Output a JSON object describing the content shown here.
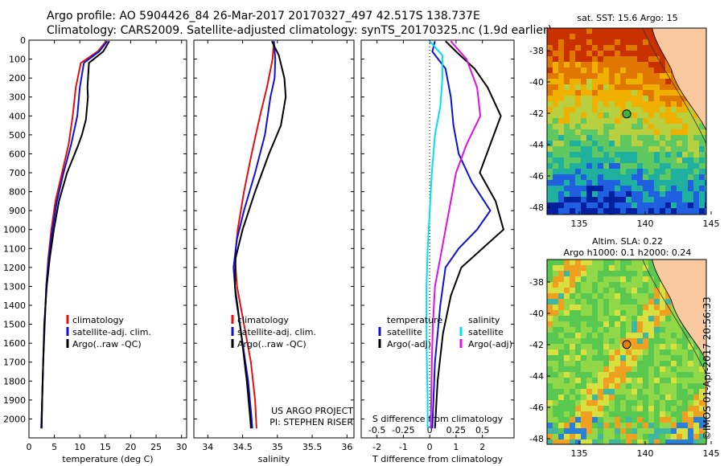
{
  "header": {
    "line1": "Argo profile: AO 5904426_84 26-Mar-2017 20170327_497 42.517S 138.737E",
    "line2": "Climatology: CARS2009. Satellite-adjusted climatology: synTS_20170325.nc (1.9d earlier)"
  },
  "colors": {
    "climatology": "#e01010",
    "satellite": "#1010d0",
    "argo": "#000000",
    "sat_sal": "#00e0f0",
    "argo_sal": "#e010e0"
  },
  "chart_data": [
    {
      "type": "line",
      "panel": "temperature",
      "xlabel": "temperature (deg C)",
      "ylabel": "",
      "xlim": [
        0,
        31
      ],
      "ylim": [
        2100,
        0
      ],
      "xticks": [
        0,
        5,
        10,
        15,
        20,
        25,
        30
      ],
      "yticks": [
        0,
        100,
        200,
        300,
        400,
        500,
        600,
        700,
        800,
        900,
        1000,
        1100,
        1200,
        1300,
        1400,
        1500,
        1600,
        1700,
        1800,
        1900,
        2000
      ],
      "legend": [
        "climatology",
        "satellite-adj. clim.",
        "Argo(..raw -QC)"
      ],
      "series": [
        {
          "name": "climatology",
          "color": "#e01010",
          "points": [
            [
              15.2,
              5
            ],
            [
              13.5,
              60
            ],
            [
              10.2,
              120
            ],
            [
              9.2,
              250
            ],
            [
              8.6,
              400
            ],
            [
              7.8,
              550
            ],
            [
              6.5,
              700
            ],
            [
              5.2,
              850
            ],
            [
              4.4,
              1000
            ],
            [
              3.8,
              1150
            ],
            [
              3.4,
              1300
            ],
            [
              3.1,
              1500
            ],
            [
              2.8,
              1700
            ],
            [
              2.6,
              1900
            ],
            [
              2.5,
              2030
            ]
          ]
        },
        {
          "name": "satellite-adj. clim.",
          "color": "#1010d0",
          "points": [
            [
              15.4,
              5
            ],
            [
              13.8,
              60
            ],
            [
              10.8,
              120
            ],
            [
              10.0,
              250
            ],
            [
              9.5,
              400
            ],
            [
              8.3,
              550
            ],
            [
              6.8,
              700
            ],
            [
              5.5,
              850
            ],
            [
              4.6,
              1000
            ],
            [
              3.9,
              1150
            ],
            [
              3.4,
              1300
            ],
            [
              3.1,
              1500
            ],
            [
              2.8,
              1700
            ],
            [
              2.6,
              1900
            ],
            [
              2.4,
              2050
            ]
          ]
        },
        {
          "name": "Argo(..raw -QC)",
          "color": "#000000",
          "points": [
            [
              15.8,
              5
            ],
            [
              14.6,
              60
            ],
            [
              11.8,
              120
            ],
            [
              11.5,
              250
            ],
            [
              11.6,
              300
            ],
            [
              11.2,
              420
            ],
            [
              10.4,
              500
            ],
            [
              9.6,
              560
            ],
            [
              7.5,
              700
            ],
            [
              5.9,
              850
            ],
            [
              4.9,
              1000
            ],
            [
              4.1,
              1150
            ],
            [
              3.5,
              1300
            ],
            [
              3.0,
              1500
            ],
            [
              2.8,
              1700
            ],
            [
              2.6,
              1900
            ],
            [
              2.5,
              2050
            ]
          ]
        }
      ]
    },
    {
      "type": "line",
      "panel": "salinity",
      "xlabel": "salinity",
      "xlim": [
        33.8,
        36.1
      ],
      "ylim": [
        2100,
        0
      ],
      "xticks": [
        34,
        34.5,
        35,
        35.5,
        36
      ],
      "legend": [
        "climatology",
        "satellite-adj. clim.",
        "Argo(..raw -QC)"
      ],
      "credit1": "US ARGO PROJECT",
      "credit2": "PI: STEPHEN RISER",
      "series": [
        {
          "name": "climatology",
          "color": "#e01010",
          "points": [
            [
              34.95,
              5
            ],
            [
              34.93,
              100
            ],
            [
              34.85,
              250
            ],
            [
              34.75,
              400
            ],
            [
              34.63,
              600
            ],
            [
              34.52,
              800
            ],
            [
              34.43,
              1000
            ],
            [
              34.39,
              1150
            ],
            [
              34.42,
              1300
            ],
            [
              34.52,
              1500
            ],
            [
              34.62,
              1700
            ],
            [
              34.68,
              1900
            ],
            [
              34.7,
              2050
            ]
          ]
        },
        {
          "name": "satellite-adj. clim.",
          "color": "#1010d0",
          "points": [
            [
              34.95,
              5
            ],
            [
              34.97,
              100
            ],
            [
              34.96,
              200
            ],
            [
              34.9,
              300
            ],
            [
              34.82,
              500
            ],
            [
              34.68,
              700
            ],
            [
              34.52,
              900
            ],
            [
              34.42,
              1050
            ],
            [
              34.37,
              1200
            ],
            [
              34.4,
              1350
            ],
            [
              34.5,
              1600
            ],
            [
              34.58,
              1800
            ],
            [
              34.63,
              2000
            ],
            [
              34.64,
              2050
            ]
          ]
        },
        {
          "name": "Argo(..raw -QC)",
          "color": "#000000",
          "points": [
            [
              34.92,
              5
            ],
            [
              35.02,
              80
            ],
            [
              35.1,
              200
            ],
            [
              35.12,
              300
            ],
            [
              35.05,
              450
            ],
            [
              34.88,
              600
            ],
            [
              34.68,
              800
            ],
            [
              34.5,
              1000
            ],
            [
              34.4,
              1150
            ],
            [
              34.39,
              1300
            ],
            [
              34.48,
              1550
            ],
            [
              34.56,
              1800
            ],
            [
              34.61,
              2000
            ],
            [
              34.62,
              2050
            ]
          ]
        }
      ]
    },
    {
      "type": "line",
      "panel": "difference",
      "xlabel": "T difference from climatology",
      "xlabel_top": "S difference from climatology",
      "xlim": [
        -2.6,
        3.2
      ],
      "ylim": [
        2100,
        0
      ],
      "xticks": [
        -2,
        -1,
        0,
        1,
        2
      ],
      "xticklabels": [
        "-2",
        "-1",
        "0",
        "1",
        "2"
      ],
      "sticks": [
        -0.5,
        -0.25,
        0,
        0.25,
        0.5
      ],
      "sticklabels": [
        "-0.5",
        "-0.25",
        "0",
        "0.25",
        "0.5"
      ],
      "legend_t_title": "temperature",
      "legend_s_title": "salinity",
      "legend_t": [
        "satellite",
        "Argo(-adj)"
      ],
      "legend_s": [
        "satellite",
        "Argo(-adj)"
      ],
      "series": [
        {
          "name": "T satellite",
          "color": "#1010d0",
          "points": [
            [
              0.2,
              5
            ],
            [
              0.1,
              60
            ],
            [
              0.6,
              150
            ],
            [
              0.8,
              300
            ],
            [
              0.9,
              450
            ],
            [
              1.1,
              600
            ],
            [
              1.6,
              750
            ],
            [
              2.3,
              900
            ],
            [
              1.8,
              1000
            ],
            [
              1.1,
              1100
            ],
            [
              0.6,
              1200
            ],
            [
              0.4,
              1400
            ],
            [
              0.2,
              1700
            ],
            [
              0.1,
              2050
            ]
          ]
        },
        {
          "name": "T Argo(-adj)",
          "color": "#000000",
          "points": [
            [
              0.6,
              5
            ],
            [
              1.0,
              60
            ],
            [
              1.7,
              150
            ],
            [
              2.2,
              250
            ],
            [
              2.7,
              400
            ],
            [
              2.3,
              550
            ],
            [
              1.9,
              700
            ],
            [
              2.5,
              850
            ],
            [
              2.8,
              1000
            ],
            [
              2.0,
              1100
            ],
            [
              1.2,
              1200
            ],
            [
              0.8,
              1350
            ],
            [
              0.5,
              1550
            ],
            [
              0.3,
              1800
            ],
            [
              0.2,
              2050
            ]
          ]
        },
        {
          "name": "S satellite",
          "color": "#00e0f0",
          "points": [
            [
              0.0,
              5
            ],
            [
              0.12,
              80
            ],
            [
              0.12,
              200
            ],
            [
              0.1,
              350
            ],
            [
              0.05,
              500
            ],
            [
              0.02,
              700
            ],
            [
              0.0,
              900
            ],
            [
              -0.02,
              1100
            ],
            [
              -0.03,
              1300
            ],
            [
              -0.03,
              1600
            ],
            [
              -0.02,
              1900
            ],
            [
              -0.02,
              2050
            ]
          ]
        },
        {
          "name": "S Argo(-adj)",
          "color": "#e010e0",
          "points": [
            [
              0.2,
              5
            ],
            [
              0.35,
              100
            ],
            [
              0.45,
              250
            ],
            [
              0.48,
              400
            ],
            [
              0.35,
              550
            ],
            [
              0.25,
              700
            ],
            [
              0.2,
              850
            ],
            [
              0.15,
              1000
            ],
            [
              0.1,
              1150
            ],
            [
              0.05,
              1300
            ],
            [
              0.03,
              1500
            ],
            [
              0.02,
              1700
            ],
            [
              0.01,
              2050
            ]
          ]
        }
      ]
    }
  ],
  "maps": {
    "sst_title": "sat. SST: 15.6 Argo: 15",
    "sla_title1": "Altim. SLA: 0.22",
    "sla_title2": "Argo h1000: 0.1 h2000: 0.24",
    "lat_ticks": [
      "-38",
      "-40",
      "-42",
      "-44",
      "-46",
      "-48"
    ],
    "lon_ticks": [
      "135",
      "140",
      "145"
    ],
    "sst_colors": [
      "#c83000",
      "#e07800",
      "#f0b000",
      "#b8d040",
      "#60c860",
      "#20b0a0",
      "#2060e0",
      "#0020a0"
    ],
    "sla_colors": [
      "#90d848",
      "#58c850",
      "#d8e040",
      "#f0a020",
      "#40b8a0",
      "#2880d8"
    ],
    "land_color": "#f8c8a0"
  },
  "credit_vertical": "©IMOS 01-Apr-2017 20:56:33"
}
